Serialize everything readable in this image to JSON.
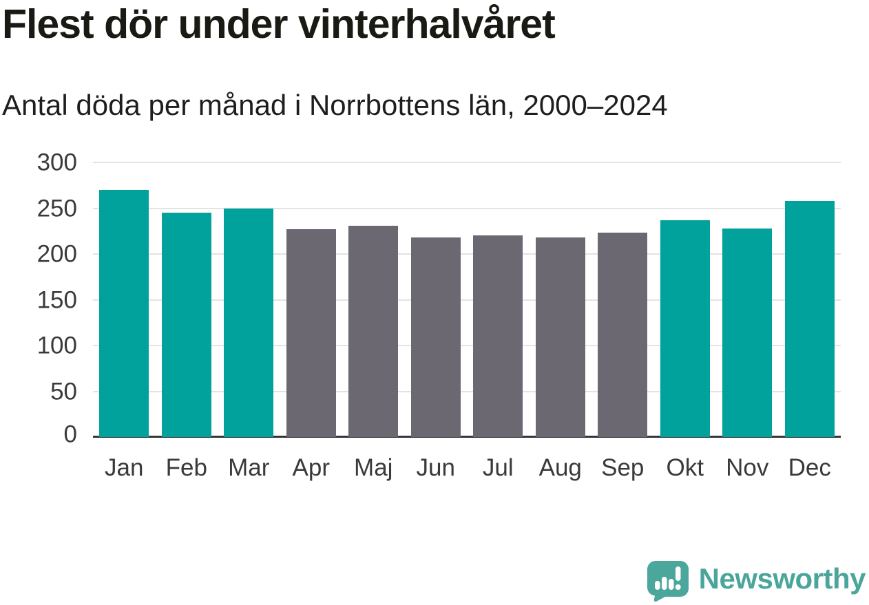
{
  "header": {
    "title": "Flest dör under vinterhalvåret",
    "subtitle": "Antal döda per månad i Norrbottens län, 2000–2024"
  },
  "chart_data": {
    "type": "bar",
    "title": "Flest dör under vinterhalvåret",
    "subtitle": "Antal döda per månad i Norrbottens län, 2000–2024",
    "categories": [
      "Jan",
      "Feb",
      "Mar",
      "Apr",
      "Maj",
      "Jun",
      "Jul",
      "Aug",
      "Sep",
      "Okt",
      "Nov",
      "Dec"
    ],
    "values": [
      270,
      245,
      250,
      227,
      231,
      218,
      220,
      218,
      223,
      237,
      228,
      258
    ],
    "highlighted_categories": [
      "Jan",
      "Feb",
      "Mar",
      "Okt",
      "Nov",
      "Dec"
    ],
    "xlabel": "",
    "ylabel": "",
    "ylim": [
      0,
      300
    ],
    "yticks": [
      0,
      50,
      100,
      150,
      200,
      250,
      300
    ],
    "grid": true,
    "legend_position": "none",
    "colors": {
      "highlight_bar": "#00a29b",
      "base_bar": "#6b6872",
      "gridline": "#e3e3e3",
      "axis": "#333538",
      "tick_text": "#3a3a3a"
    }
  },
  "footer": {
    "brand": "Newsworthy",
    "logo_icon": "newsworthy-speech-bubble-chart-icon",
    "brand_color": "#4aa59b"
  }
}
